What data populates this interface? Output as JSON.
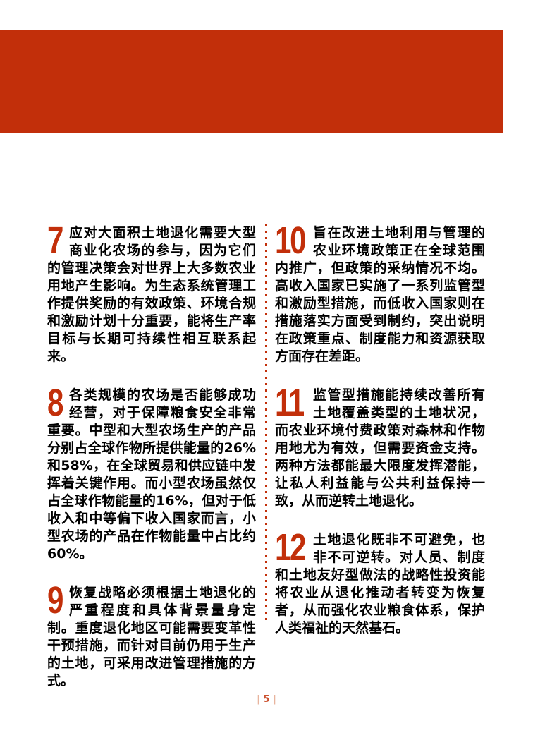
{
  "document": {
    "kind": "report-key-points-page",
    "language": "zh"
  },
  "colors": {
    "accent": "#C22F0A",
    "text": "#000000",
    "footer_bar": "#E5A88F",
    "footer_number": "#CC5230"
  },
  "columns": {
    "left": [
      {
        "number": "7",
        "text": "应对大面积土地退化需要大型商业化农场的参与，因为它们的管理决策会对世界上大多数农业用地产生影响。为生态系统管理工作提供奖励的有效政策、环境合规和激励计划十分重要，能将生产率目标与长期可持续性相互联系起来。"
      },
      {
        "number": "8",
        "text": "各类规模的农场是否能够成功经营，对于保障粮食安全非常重要。中型和大型农场生产的产品分别占全球作物所提供能量的26%和58%，在全球贸易和供应链中发挥着关键作用。而小型农场虽然仅占全球作物能量的16%，但对于低收入和中等偏下收入国家而言，小型农场的产品在作物能量中占比约60%。"
      },
      {
        "number": "9",
        "text": "恢复战略必须根据土地退化的严重程度和具体背景量身定制。重度退化地区可能需要变革性干预措施，而针对目前仍用于生产的土地，可采用改进管理措施的方式。"
      }
    ],
    "right": [
      {
        "number": "10",
        "text": "旨在改进土地利用与管理的农业环境政策正在全球范围内推广，但政策的采纳情况不均。高收入国家已实施了一系列监管型和激励型措施，而低收入国家则在措施落实方面受到制约，突出说明在政策重点、制度能力和资源获取方面存在差距。"
      },
      {
        "number": "11",
        "text": "监管型措施能持续改善所有土地覆盖类型的土地状况，而农业环境付费政策对森林和作物用地尤为有效，但需要资金支持。两种方法都能最大限度发挥潜能，让私人利益能与公共利益保持一致，从而逆转土地退化。"
      },
      {
        "number": "12",
        "text": "土地退化既非不可避免，也非不可逆转。对人员、制度和土地友好型做法的战略性投资能将农业从退化推动者转变为恢复者，从而强化农业粮食体系，保护人类福祉的天然基石。"
      }
    ]
  },
  "footer": {
    "left_bar": "|",
    "page_number": "5",
    "right_bar": "|"
  }
}
